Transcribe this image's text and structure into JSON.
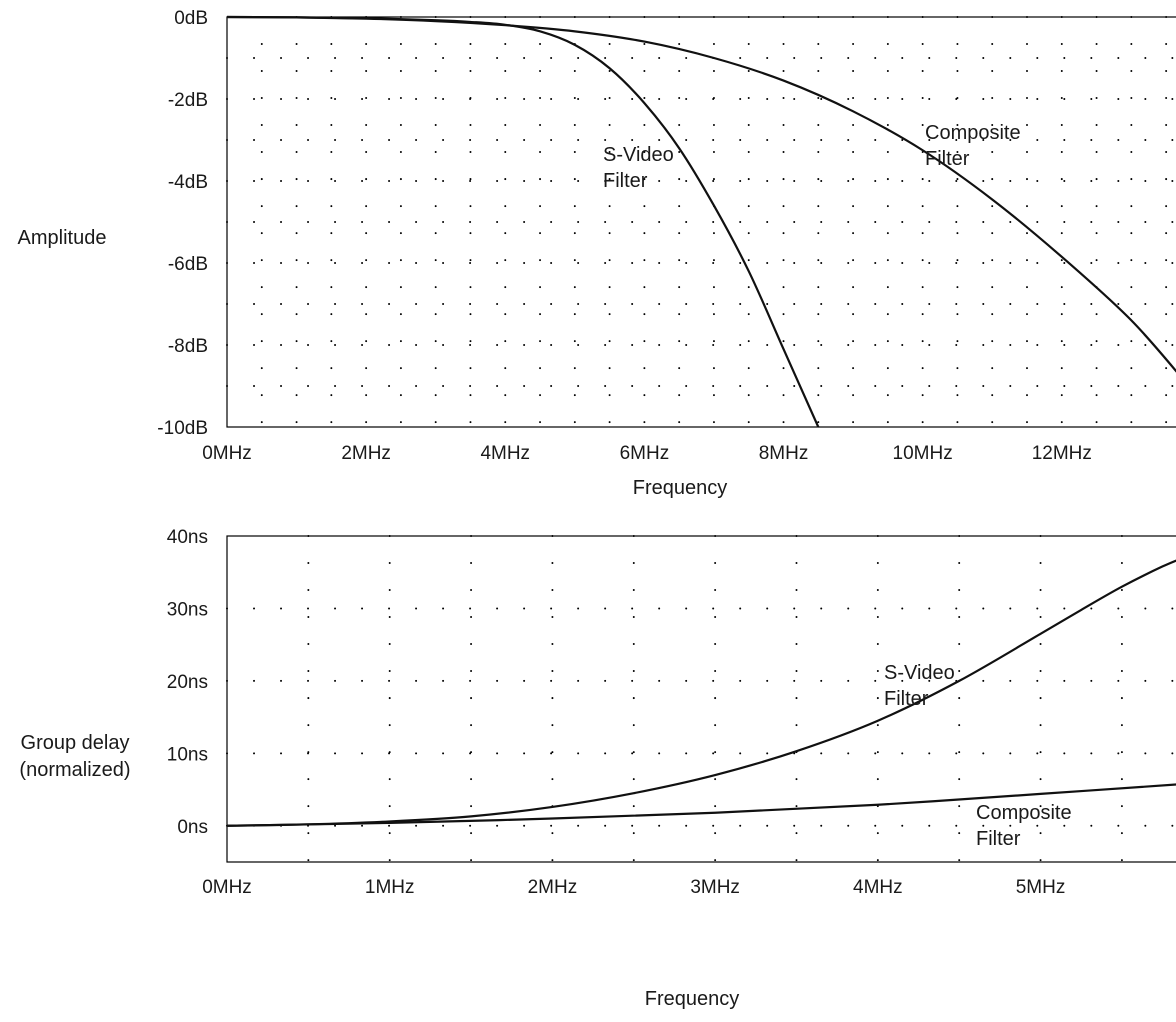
{
  "chart_data": [
    {
      "type": "line",
      "title": "",
      "xlabel": "Frequency",
      "ylabel": "Amplitude",
      "x_unit": "MHz",
      "xlim": [
        0,
        13.8
      ],
      "ylim": [
        -10,
        0
      ],
      "x_ticks": [
        0,
        2,
        4,
        6,
        8,
        10,
        12
      ],
      "x_tick_labels": [
        "0MHz",
        "2MHz",
        "4MHz",
        "6MHz",
        "8MHz",
        "10MHz",
        "12MHz"
      ],
      "y_ticks": [
        0,
        -2,
        -4,
        -6,
        -8,
        -10
      ],
      "y_tick_labels": [
        "0dB",
        "-2dB",
        "-4dB",
        "-6dB",
        "-8dB",
        "-10dB"
      ],
      "grid": true,
      "series": [
        {
          "name": "S-Video Filter",
          "label_lines": [
            "S-Video",
            "Filter"
          ],
          "x": [
            0,
            1,
            2,
            3,
            3.5,
            4,
            4.5,
            5,
            5.5,
            6,
            6.5,
            7,
            7.5,
            8,
            8.5
          ],
          "y": [
            0,
            -0.01,
            -0.03,
            -0.08,
            -0.12,
            -0.19,
            -0.35,
            -0.68,
            -1.25,
            -2.1,
            -3.2,
            -4.6,
            -6.2,
            -8.1,
            -10
          ]
        },
        {
          "name": "Composite Filter",
          "label_lines": [
            "Composite",
            "Filter"
          ],
          "x": [
            0,
            1,
            2,
            3,
            4,
            5,
            6,
            7,
            8,
            9,
            10,
            11,
            12,
            13,
            13.8
          ],
          "y": [
            0,
            -0.01,
            -0.04,
            -0.1,
            -0.2,
            -0.35,
            -0.6,
            -1.0,
            -1.55,
            -2.3,
            -3.25,
            -4.45,
            -5.85,
            -7.4,
            -8.95
          ]
        }
      ]
    },
    {
      "type": "line",
      "title": "",
      "xlabel": "Frequency",
      "ylabel_lines": [
        "Group delay",
        "(normalized)"
      ],
      "x_unit": "MHz",
      "xlim": [
        0,
        5.9
      ],
      "ylim": [
        -5,
        40
      ],
      "x_ticks": [
        0,
        1,
        2,
        3,
        4,
        5
      ],
      "x_tick_labels": [
        "0MHz",
        "1MHz",
        "2MHz",
        "3MHz",
        "4MHz",
        "5MHz"
      ],
      "y_ticks": [
        40,
        30,
        20,
        10,
        0
      ],
      "y_tick_labels": [
        "40ns",
        "30ns",
        "20ns",
        "10ns",
        "0ns"
      ],
      "grid": true,
      "series": [
        {
          "name": "S-Video Filter",
          "label_lines": [
            "S-Video",
            "Filter"
          ],
          "x": [
            0,
            0.5,
            1,
            1.5,
            2,
            2.5,
            3,
            3.5,
            4,
            4.5,
            5,
            5.25,
            5.5,
            5.75,
            5.9
          ],
          "y": [
            0,
            0.2,
            0.6,
            1.3,
            2.6,
            4.5,
            7.0,
            10.3,
            14.5,
            20.0,
            26.5,
            29.8,
            33.0,
            35.8,
            37.2
          ]
        },
        {
          "name": "Composite Filter",
          "label_lines": [
            "Composite",
            "Filter"
          ],
          "x": [
            0,
            1,
            2,
            3,
            4,
            5,
            5.9
          ],
          "y": [
            0,
            0.4,
            1.0,
            1.8,
            2.9,
            4.4,
            5.8
          ]
        }
      ]
    }
  ]
}
